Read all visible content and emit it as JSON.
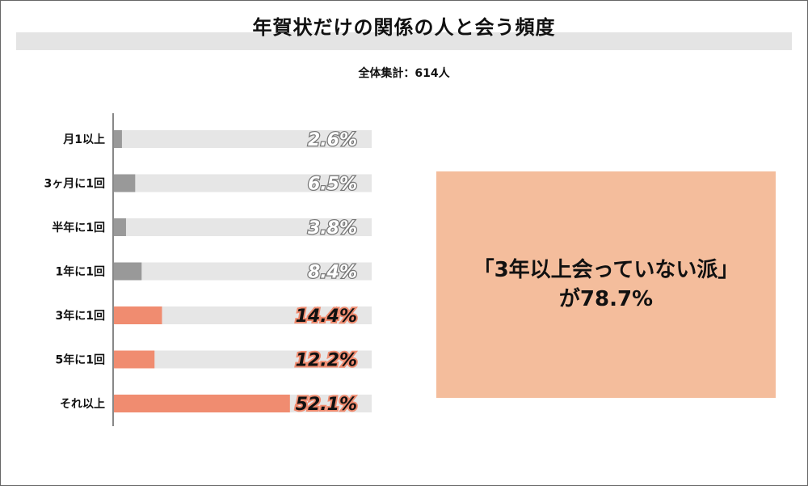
{
  "title": "年賀状だけの関係の人と会う頻度",
  "subtitle": "全体集計：614人",
  "chart_data": {
    "type": "bar",
    "orientation": "horizontal",
    "categories": [
      "月1以上",
      "3ヶ月に1回",
      "半年に1回",
      "1年に1回",
      "3年に1回",
      "5年に1回",
      "それ以上"
    ],
    "values": [
      2.6,
      6.5,
      3.8,
      8.4,
      14.4,
      12.2,
      52.1
    ],
    "value_labels": [
      "2.6%",
      "6.5%",
      "3.8%",
      "8.4%",
      "14.4%",
      "12.2%",
      "52.1%"
    ],
    "unit": "%",
    "xlim": [
      0,
      100
    ],
    "grid": false,
    "colors": {
      "low_group": "#999999",
      "high_group": "#f08c70",
      "track": "#e6e6e6",
      "axis": "#888888"
    },
    "highlight_from_index": 4
  },
  "callout": {
    "line1": "「3年以上会っていない派」",
    "line2": "が78.7%",
    "background": "#f4bd9c"
  }
}
